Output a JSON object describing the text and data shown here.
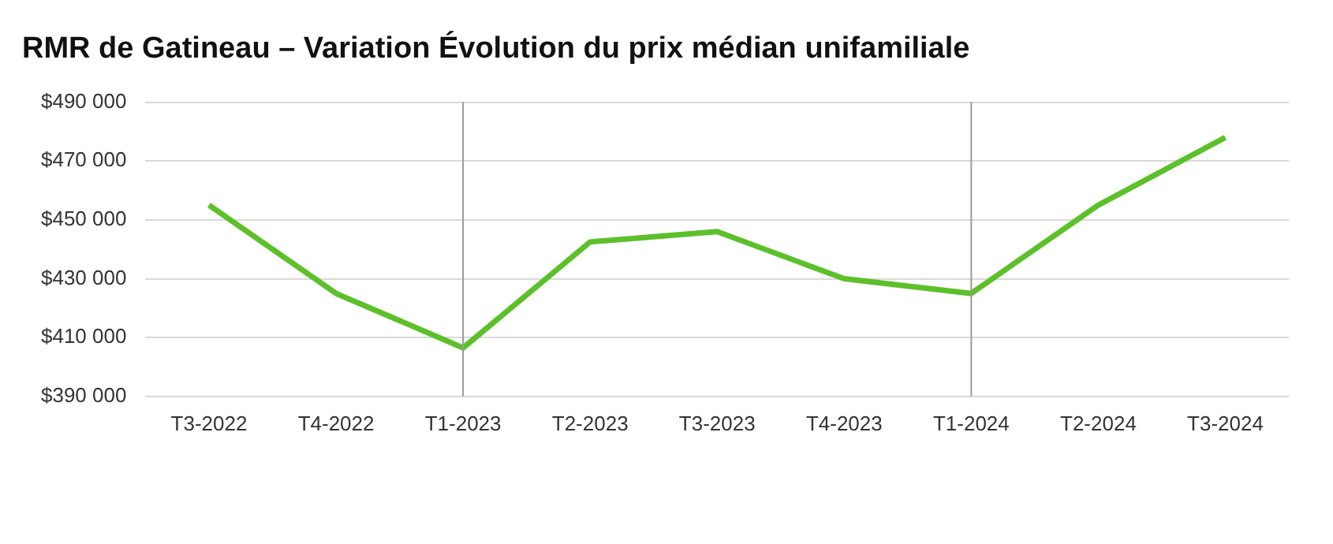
{
  "chart_data": {
    "type": "line",
    "title": "RMR de Gatineau – Variation Évolution du prix médian unifamiliale",
    "categories": [
      "T3-2022",
      "T4-2022",
      "T1-2023",
      "T2-2023",
      "T3-2023",
      "T4-2023",
      "T1-2024",
      "T2-2024",
      "T3-2024"
    ],
    "series": [
      {
        "color": "#5cc02a",
        "values": [
          455000,
          425000,
          406500,
          442500,
          446000,
          430000,
          425000,
          455000,
          478000
        ]
      }
    ],
    "ylim": [
      390000,
      490000
    ],
    "yticks": [
      {
        "value": 390000,
        "label": "$390 000"
      },
      {
        "value": 410000,
        "label": "$410 000"
      },
      {
        "value": 430000,
        "label": "$430 000"
      },
      {
        "value": 450000,
        "label": "$450 000"
      },
      {
        "value": 470000,
        "label": "$470 000"
      },
      {
        "value": 490000,
        "label": "$490 000"
      }
    ],
    "ref_lines": [
      {
        "axis": "x",
        "value": "T1-2023",
        "color": "#999999"
      },
      {
        "axis": "x",
        "value": "T1-2024",
        "color": "#999999"
      }
    ],
    "grid": "y",
    "legend": false,
    "marker": "none",
    "line_style": "solid"
  }
}
